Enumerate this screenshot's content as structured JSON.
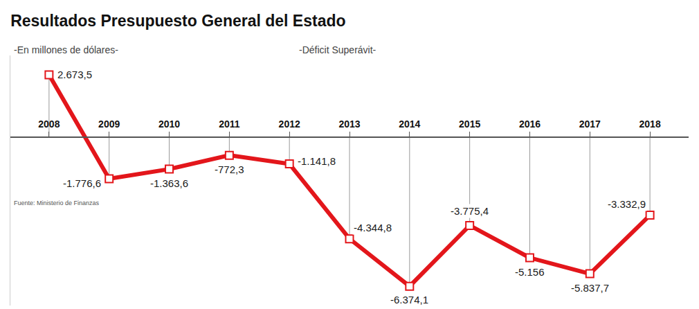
{
  "chart_data": {
    "type": "line",
    "title": "Resultados Presupuesto General del Estado",
    "subtitle": "-En millones de dólares-",
    "annotations": [
      "-Déficit Superávit-",
      "Fuente: Ministerio de Finanzas"
    ],
    "categories": [
      "2008",
      "2009",
      "2010",
      "2011",
      "2012",
      "2013",
      "2014",
      "2015",
      "2016",
      "2017",
      "2018"
    ],
    "values": [
      2673.5,
      -1776.6,
      -1363.6,
      -772.3,
      -1141.8,
      -4344.8,
      -6374.1,
      -3775.4,
      -5156,
      -5837.7,
      -3332.9
    ],
    "value_labels": [
      "2.673,5",
      "-1.776,6",
      "-1.363,6",
      "-772,3",
      "-1.141,8",
      "-4.344,8",
      "-6.374,1",
      "-3.775,4",
      "-5.156",
      "-5.837,7",
      "-3.332,9"
    ],
    "color": "#e3161b",
    "marker": "square",
    "ylim": [
      -7200,
      3500
    ],
    "grid": false,
    "data_labels": true,
    "tick_labels": "x"
  }
}
